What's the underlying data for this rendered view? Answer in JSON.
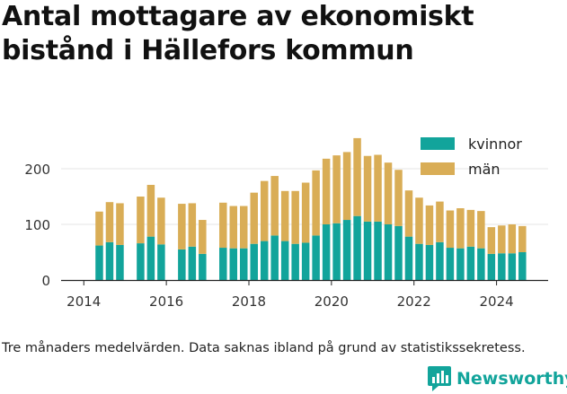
{
  "chart_data": {
    "type": "bar",
    "stacked": true,
    "title": "Antal mottagare av ekonomiskt bistånd i Hällefors kommun",
    "xlabel": "",
    "ylabel": "",
    "ylim": [
      0,
      260
    ],
    "yticks": [
      0,
      100,
      200
    ],
    "xticks": [
      2014,
      2016,
      2018,
      2020,
      2022,
      2024
    ],
    "xlim": [
      2013.45,
      2025.25
    ],
    "grid": "horizontal",
    "legend_position": "top-right",
    "x": [
      2014.375,
      2014.625,
      2014.875,
      2015.375,
      2015.625,
      2015.875,
      2016.375,
      2016.625,
      2016.875,
      2017.375,
      2017.625,
      2017.875,
      2018.125,
      2018.375,
      2018.625,
      2018.875,
      2019.125,
      2019.375,
      2019.625,
      2019.875,
      2020.125,
      2020.375,
      2020.625,
      2020.875,
      2021.125,
      2021.375,
      2021.625,
      2021.875,
      2022.125,
      2022.375,
      2022.625,
      2022.875,
      2023.125,
      2023.375,
      2023.625,
      2023.875,
      2024.125,
      2024.375,
      2024.625
    ],
    "series": [
      {
        "name": "kvinnor",
        "color": "#12a49b",
        "values": [
          62,
          68,
          63,
          66,
          78,
          64,
          55,
          60,
          47,
          58,
          57,
          57,
          65,
          70,
          80,
          70,
          65,
          67,
          80,
          100,
          102,
          108,
          115,
          105,
          105,
          100,
          97,
          78,
          65,
          63,
          68,
          58,
          57,
          60,
          57,
          47,
          48,
          48,
          50
        ]
      },
      {
        "name": "män",
        "color": "#d9ad56",
        "values": [
          61,
          72,
          75,
          84,
          93,
          84,
          82,
          78,
          61,
          81,
          76,
          76,
          92,
          108,
          107,
          90,
          95,
          108,
          117,
          118,
          122,
          122,
          140,
          118,
          120,
          111,
          101,
          83,
          83,
          71,
          73,
          67,
          72,
          66,
          67,
          48,
          50,
          52,
          47
        ]
      }
    ]
  },
  "footnote": "Tre månaders medelvärden. Data saknas ibland på grund av statistikssekretess.",
  "brand": {
    "name": "Newsworthy",
    "color": "#12a49b",
    "icon": "newsworthy-logo-icon"
  }
}
